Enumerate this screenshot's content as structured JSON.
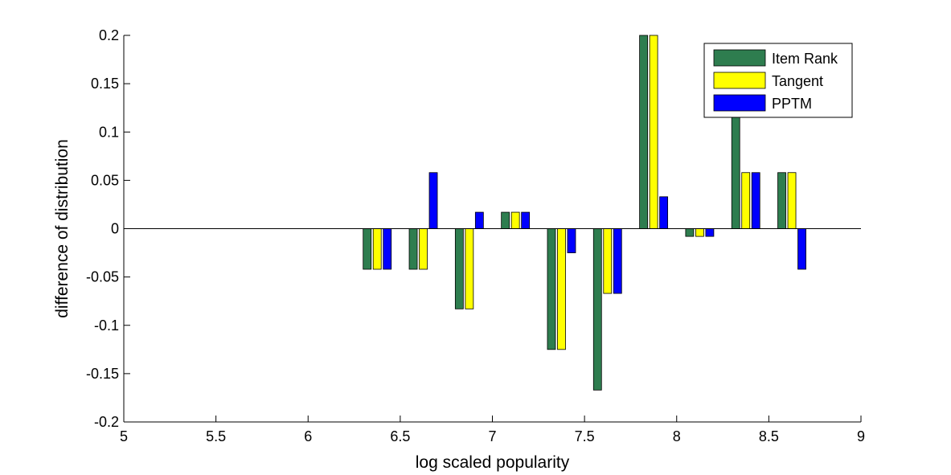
{
  "chart_data": {
    "type": "bar",
    "xlabel": "log scaled popularity",
    "ylabel": "difference of distribution",
    "xlim": [
      5,
      9
    ],
    "ylim": [
      -0.2,
      0.2
    ],
    "xticks": [
      "5",
      "5.5",
      "6",
      "6.5",
      "7",
      "7.5",
      "8",
      "8.5",
      "9"
    ],
    "yticks": [
      "-0.2",
      "-0.15",
      "-0.1",
      "-0.05",
      "0",
      "0.05",
      "0.1",
      "0.15",
      "0.2"
    ],
    "x": [
      6.375,
      6.625,
      6.875,
      7.125,
      7.375,
      7.625,
      7.875,
      8.125,
      8.375,
      8.625
    ],
    "legend_position": "top-right",
    "grid": false,
    "series": [
      {
        "name": "Item Rank",
        "color": "#2e7d4f",
        "values": [
          -0.042,
          -0.042,
          -0.083,
          0.017,
          -0.125,
          -0.167,
          0.2,
          -0.008,
          0.117,
          0.058
        ]
      },
      {
        "name": "Tangent",
        "color": "#ffff00",
        "values": [
          -0.042,
          -0.042,
          -0.083,
          0.017,
          -0.125,
          -0.067,
          0.2,
          -0.008,
          0.058,
          0.058
        ]
      },
      {
        "name": "PPTM",
        "color": "#0000ff",
        "values": [
          -0.042,
          0.058,
          0.017,
          0.017,
          -0.025,
          -0.067,
          0.033,
          -0.008,
          0.058,
          -0.042
        ]
      }
    ]
  }
}
